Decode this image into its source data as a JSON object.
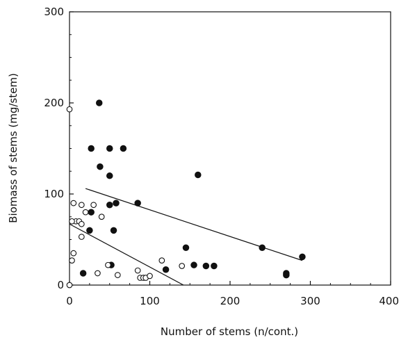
{
  "chart_data": {
    "type": "scatter",
    "title": "",
    "xlabel": "Number of stems (n/cont.)",
    "ylabel": "Biomass of stems (mg/stem)",
    "xlim": [
      0,
      400
    ],
    "ylim": [
      0,
      300
    ],
    "x_ticks": [
      "0",
      "100",
      "200",
      "300",
      "400"
    ],
    "y_ticks": [
      "0",
      "100",
      "200",
      "300"
    ],
    "grid": false,
    "legend": "none",
    "series": [
      {
        "marker": "filled-circle",
        "color": "#111111",
        "points": [
          [
            37,
            200
          ],
          [
            27,
            150
          ],
          [
            50,
            150
          ],
          [
            67,
            150
          ],
          [
            38,
            130
          ],
          [
            50,
            120
          ],
          [
            160,
            121
          ],
          [
            58,
            90
          ],
          [
            85,
            90
          ],
          [
            50,
            88
          ],
          [
            27,
            80
          ],
          [
            55,
            60
          ],
          [
            25,
            60
          ],
          [
            120,
            17
          ],
          [
            145,
            41
          ],
          [
            155,
            22
          ],
          [
            170,
            21
          ],
          [
            180,
            21
          ],
          [
            240,
            41
          ],
          [
            270,
            13
          ],
          [
            270,
            11
          ],
          [
            290,
            31
          ],
          [
            52,
            22
          ],
          [
            17,
            13
          ]
        ],
        "fit_line": [
          [
            20,
            106
          ],
          [
            290,
            27
          ]
        ]
      },
      {
        "marker": "open-circle",
        "color": "#111111",
        "points": [
          [
            0,
            193
          ],
          [
            5,
            90
          ],
          [
            15,
            88
          ],
          [
            8,
            70
          ],
          [
            3,
            70
          ],
          [
            12,
            70
          ],
          [
            15,
            67
          ],
          [
            20,
            80
          ],
          [
            30,
            88
          ],
          [
            40,
            75
          ],
          [
            15,
            53
          ],
          [
            5,
            35
          ],
          [
            3,
            27
          ],
          [
            48,
            22
          ],
          [
            35,
            13
          ],
          [
            60,
            11
          ],
          [
            85,
            16
          ],
          [
            88,
            8
          ],
          [
            92,
            8
          ],
          [
            95,
            8
          ],
          [
            100,
            10
          ],
          [
            115,
            27
          ],
          [
            140,
            21
          ],
          [
            0,
            0
          ]
        ],
        "fit_line": [
          [
            0,
            67
          ],
          [
            142,
            0
          ]
        ]
      }
    ]
  }
}
